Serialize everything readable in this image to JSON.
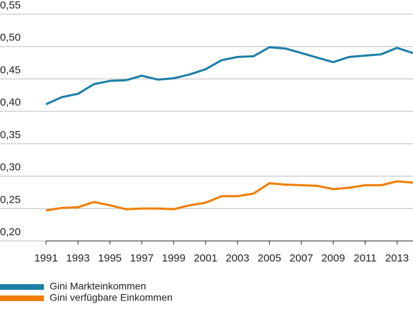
{
  "chart_data": {
    "type": "line",
    "x": [
      1991,
      1992,
      1993,
      1994,
      1995,
      1996,
      1997,
      1998,
      1999,
      2000,
      2001,
      2002,
      2003,
      2004,
      2005,
      2006,
      2007,
      2008,
      2009,
      2010,
      2011,
      2012,
      2013,
      2014
    ],
    "series": [
      {
        "name": "Gini Markteinkommen",
        "color": "#1c7fa6",
        "values": [
          0.411,
          0.422,
          0.427,
          0.442,
          0.447,
          0.448,
          0.455,
          0.449,
          0.451,
          0.457,
          0.465,
          0.479,
          0.484,
          0.485,
          0.499,
          0.497,
          0.49,
          0.483,
          0.476,
          0.484,
          0.486,
          0.488,
          0.498,
          0.49
        ]
      },
      {
        "name": "Gini verfügbare Einkommen",
        "color": "#f07d00",
        "values": [
          0.247,
          0.251,
          0.252,
          0.26,
          0.255,
          0.249,
          0.25,
          0.25,
          0.249,
          0.255,
          0.259,
          0.269,
          0.269,
          0.273,
          0.289,
          0.287,
          0.286,
          0.285,
          0.28,
          0.282,
          0.286,
          0.286,
          0.292,
          0.29
        ]
      }
    ],
    "xlim": [
      1991,
      2014
    ],
    "xticks": [
      1991,
      1993,
      1995,
      1997,
      1999,
      2001,
      2003,
      2005,
      2007,
      2009,
      2011,
      2013
    ],
    "ylim": [
      0.2,
      0.55
    ],
    "yticks": [
      {
        "value": 0.2,
        "label": "0,20"
      },
      {
        "value": 0.25,
        "label": "0,25"
      },
      {
        "value": 0.3,
        "label": "0,30"
      },
      {
        "value": 0.35,
        "label": "0,35"
      },
      {
        "value": 0.4,
        "label": "0,40"
      },
      {
        "value": 0.45,
        "label": "0,45"
      },
      {
        "value": 0.5,
        "label": "0,50"
      },
      {
        "value": 0.55,
        "label": "0,55"
      }
    ],
    "grid": true
  }
}
